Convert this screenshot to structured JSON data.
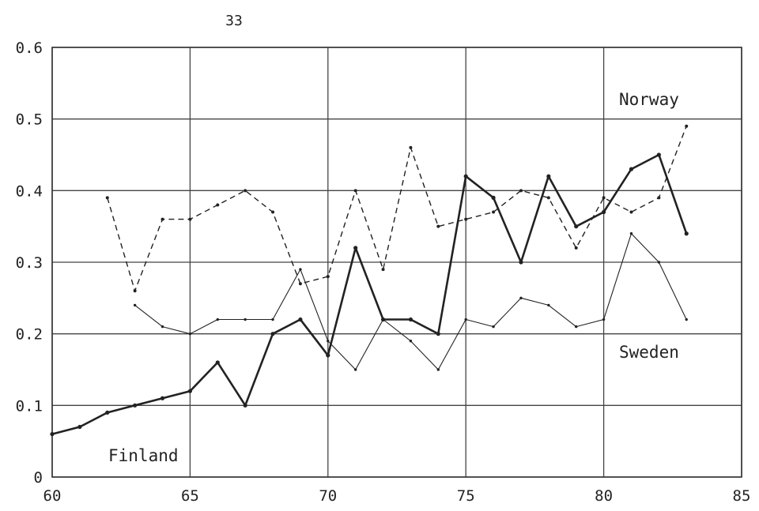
{
  "page": {
    "number_label": "33"
  },
  "chart_data": {
    "type": "line",
    "title": "",
    "xlabel": "",
    "ylabel": "",
    "xlim": [
      60,
      85
    ],
    "ylim": [
      0,
      0.6
    ],
    "grid": true,
    "x_ticks": [
      60,
      65,
      70,
      75,
      80,
      85
    ],
    "x_tick_labels": [
      "60",
      "65",
      "70",
      "75",
      "80",
      "85"
    ],
    "y_ticks": [
      0,
      0.1,
      0.2,
      0.3,
      0.4,
      0.5,
      0.6
    ],
    "y_tick_labels": [
      "0",
      "0.1",
      "0.2",
      "0.3",
      "0.4",
      "0.5",
      "0.6"
    ],
    "series": [
      {
        "name": "Finland",
        "style": "thick-solid",
        "color": "#222222",
        "x": [
          60,
          61,
          62,
          63,
          64,
          65,
          66,
          67,
          68,
          69,
          70,
          71,
          72,
          73,
          74,
          75,
          76,
          77,
          78,
          79,
          80,
          81,
          82,
          83
        ],
        "y": [
          0.06,
          0.07,
          0.09,
          0.1,
          0.11,
          0.12,
          0.16,
          0.1,
          0.2,
          0.22,
          0.17,
          0.32,
          0.22,
          0.22,
          0.2,
          0.42,
          0.39,
          0.3,
          0.42,
          0.35,
          0.37,
          0.43,
          0.45,
          0.34
        ]
      },
      {
        "name": "Norway",
        "style": "dashed",
        "color": "#222222",
        "x": [
          62,
          63,
          64,
          65,
          66,
          67,
          68,
          69,
          70,
          71,
          72,
          73,
          74,
          75,
          76,
          77,
          78,
          79,
          80,
          81,
          82,
          83
        ],
        "y": [
          0.39,
          0.26,
          0.36,
          0.36,
          0.38,
          0.4,
          0.37,
          0.27,
          0.28,
          0.4,
          0.29,
          0.46,
          0.35,
          0.36,
          0.37,
          0.4,
          0.39,
          0.32,
          0.39,
          0.37,
          0.39,
          0.49
        ]
      },
      {
        "name": "Sweden",
        "style": "thin-solid",
        "color": "#222222",
        "x": [
          63,
          64,
          65,
          66,
          67,
          68,
          69,
          70,
          71,
          72,
          73,
          74,
          75,
          76,
          77,
          78,
          79,
          80,
          81,
          82,
          83
        ],
        "y": [
          0.24,
          0.21,
          0.2,
          0.22,
          0.22,
          0.22,
          0.29,
          0.19,
          0.15,
          0.22,
          0.19,
          0.15,
          0.22,
          0.21,
          0.25,
          0.24,
          0.21,
          0.22,
          0.34,
          0.3,
          0.22
        ]
      }
    ],
    "annotations": [
      "Norway",
      "Sweden",
      "Finland"
    ]
  }
}
